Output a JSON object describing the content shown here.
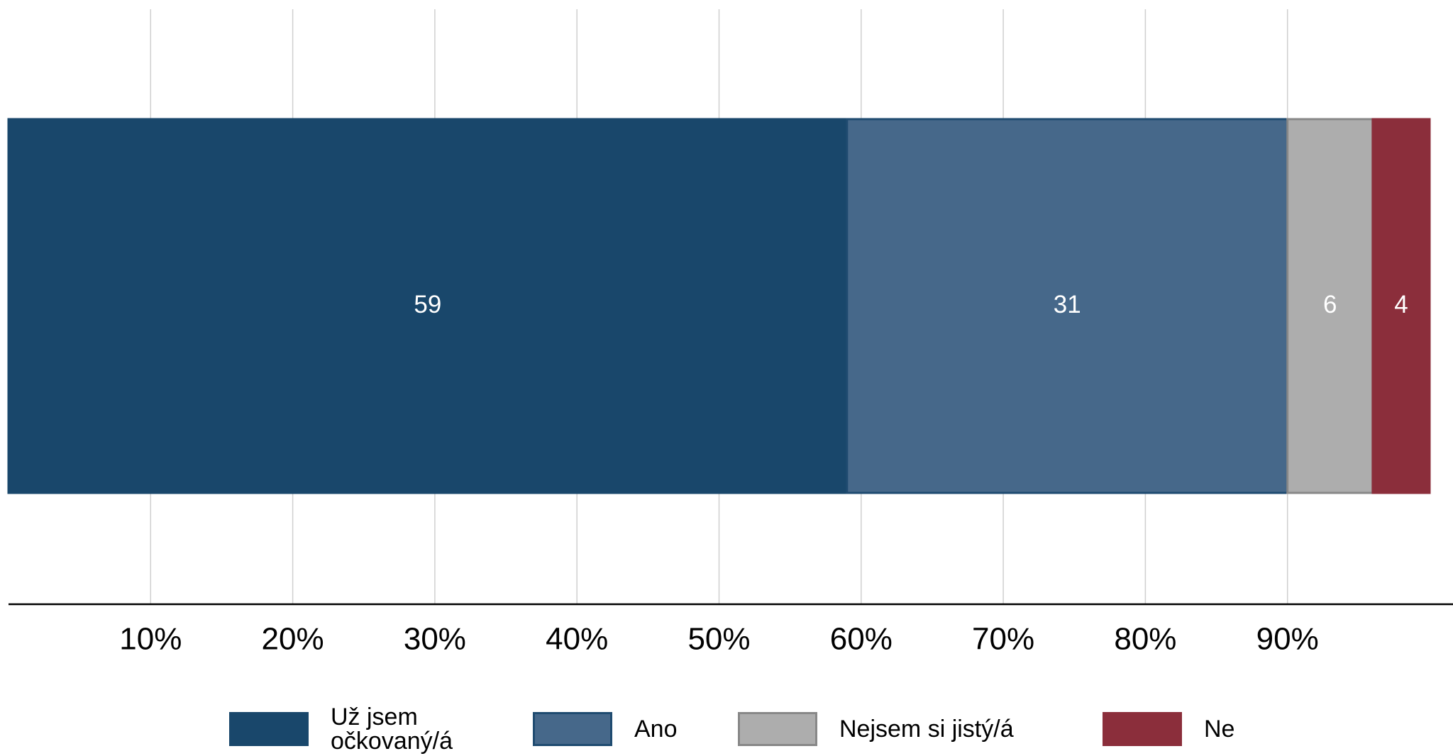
{
  "chart_data": {
    "type": "stacked-bar-horizontal",
    "series": [
      {
        "name": "Už jsem očkovaný/á",
        "color": "#19476b",
        "values": [
          59
        ]
      },
      {
        "name": "Ano",
        "color": "#46688a",
        "values": [
          31
        ]
      },
      {
        "name": "Nejsem si jistý/á",
        "color": "#adadad",
        "values": [
          6
        ]
      },
      {
        "name": "Ne",
        "color": "#8b2e3b",
        "values": [
          4
        ]
      }
    ],
    "xlim": [
      0,
      100
    ],
    "xticks": [
      {
        "value": 10,
        "label": "10%"
      },
      {
        "value": 20,
        "label": "20%"
      },
      {
        "value": 30,
        "label": "30%"
      },
      {
        "value": 40,
        "label": "40%"
      },
      {
        "value": 50,
        "label": "50%"
      },
      {
        "value": 60,
        "label": "60%"
      },
      {
        "value": 70,
        "label": "70%"
      },
      {
        "value": 80,
        "label": "80%"
      },
      {
        "value": 90,
        "label": "90%"
      }
    ],
    "grid": true
  }
}
